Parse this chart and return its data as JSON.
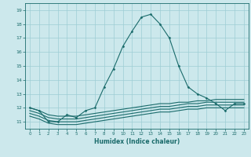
{
  "title": "",
  "xlabel": "Humidex (Indice chaleur)",
  "ylabel": "",
  "bg_color": "#cce8ec",
  "grid_color": "#9ecdd4",
  "line_color": "#1a6b6b",
  "x_main": [
    0,
    1,
    2,
    3,
    4,
    5,
    6,
    7,
    8,
    9,
    10,
    11,
    12,
    13,
    14,
    15,
    16,
    17,
    18,
    19,
    20,
    21,
    22,
    23
  ],
  "y_main": [
    12.0,
    11.8,
    11.0,
    11.0,
    11.5,
    11.3,
    11.8,
    12.0,
    13.5,
    14.8,
    16.4,
    17.5,
    18.5,
    18.7,
    18.0,
    17.0,
    15.0,
    13.5,
    13.0,
    12.7,
    12.3,
    11.8,
    12.3,
    12.3
  ],
  "flat_lines": [
    [
      0,
      1,
      2,
      3,
      4,
      5,
      6,
      7,
      8,
      9,
      10,
      11,
      12,
      13,
      14,
      15,
      16,
      17,
      18,
      19,
      20,
      21,
      22,
      23
    ],
    [
      12.0,
      11.8,
      11.5,
      11.4,
      11.4,
      11.4,
      11.5,
      11.6,
      11.7,
      11.8,
      11.9,
      12.0,
      12.1,
      12.2,
      12.3,
      12.3,
      12.4,
      12.4,
      12.5,
      12.5,
      12.6,
      12.6,
      12.6,
      12.6
    ]
  ],
  "flat_lines2": [
    [
      0,
      1,
      2,
      3,
      4,
      5,
      6,
      7,
      8,
      9,
      10,
      11,
      12,
      13,
      14,
      15,
      16,
      17,
      18,
      19,
      20,
      21,
      22,
      23
    ],
    [
      11.8,
      11.6,
      11.3,
      11.2,
      11.2,
      11.2,
      11.3,
      11.4,
      11.5,
      11.6,
      11.7,
      11.8,
      11.9,
      12.0,
      12.1,
      12.1,
      12.2,
      12.3,
      12.3,
      12.4,
      12.4,
      12.4,
      12.4,
      12.4
    ]
  ],
  "flat_lines3": [
    [
      0,
      1,
      2,
      3,
      4,
      5,
      6,
      7,
      8,
      9,
      10,
      11,
      12,
      13,
      14,
      15,
      16,
      17,
      18,
      19,
      20,
      21,
      22,
      23
    ],
    [
      11.6,
      11.4,
      11.1,
      11.0,
      11.0,
      11.0,
      11.1,
      11.2,
      11.3,
      11.4,
      11.5,
      11.6,
      11.7,
      11.8,
      11.9,
      11.9,
      12.0,
      12.1,
      12.1,
      12.2,
      12.2,
      12.2,
      12.2,
      12.2
    ]
  ],
  "flat_lines4": [
    [
      0,
      1,
      2,
      3,
      4,
      5,
      6,
      7,
      8,
      9,
      10,
      11,
      12,
      13,
      14,
      15,
      16,
      17,
      18,
      19,
      20,
      21,
      22,
      23
    ],
    [
      11.4,
      11.2,
      10.9,
      10.8,
      10.8,
      10.8,
      10.9,
      11.0,
      11.1,
      11.2,
      11.3,
      11.4,
      11.5,
      11.6,
      11.7,
      11.7,
      11.8,
      11.9,
      11.9,
      12.0,
      12.0,
      12.0,
      12.0,
      12.0
    ]
  ],
  "ylim": [
    10.5,
    19.5
  ],
  "yticks": [
    11,
    12,
    13,
    14,
    15,
    16,
    17,
    18,
    19
  ],
  "xlim": [
    -0.5,
    23.5
  ],
  "xticks": [
    0,
    1,
    2,
    3,
    4,
    5,
    6,
    7,
    8,
    9,
    10,
    11,
    12,
    13,
    14,
    15,
    16,
    17,
    18,
    19,
    20,
    21,
    22,
    23
  ],
  "marker": "D",
  "marker_size": 1.5,
  "line_width": 0.8
}
